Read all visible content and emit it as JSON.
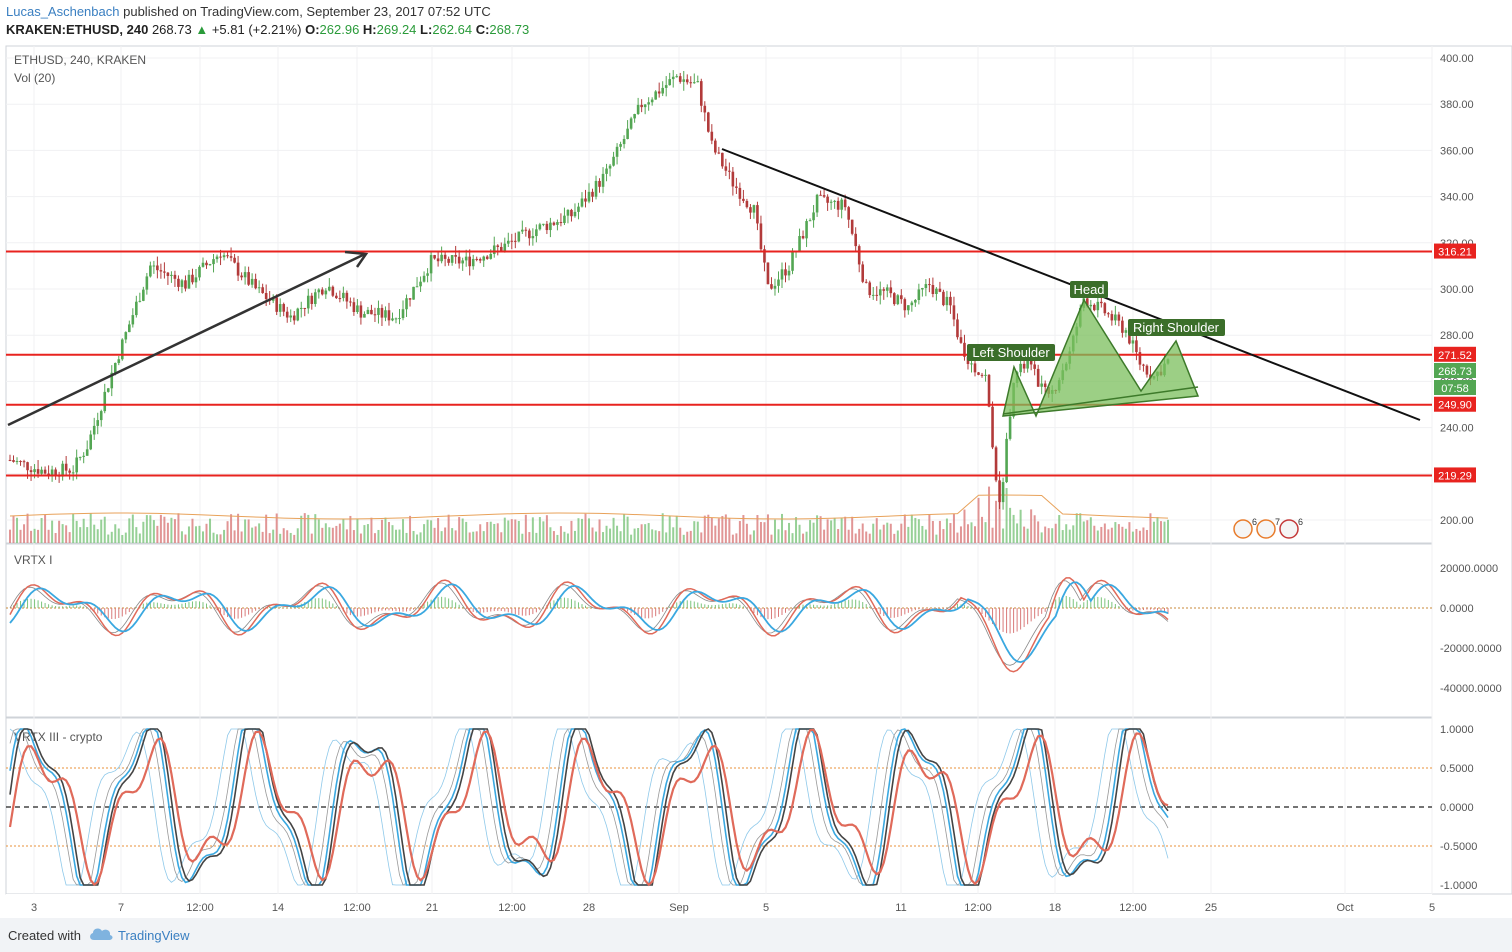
{
  "header": {
    "user": "Lucas_Aschenbach",
    "published": "published on TradingView.com, September 23, 2017 07:52 UTC",
    "symbol": "KRAKEN:ETHUSD, 240",
    "last": "268.73",
    "change": "+5.81 (+2.21%)",
    "o_label": "O:",
    "o_value": "262.96",
    "h_label": "H:",
    "h_value": "269.24",
    "l_label": "L:",
    "l_value": "262.64",
    "c_label": "C:",
    "c_value": "268.73"
  },
  "main_pane": {
    "legend_symbol": "ETHUSD, 240, KRAKEN",
    "legend_volume": "Vol (20)",
    "price_ticks": [
      "400.00",
      "380.00",
      "360.00",
      "340.00",
      "320.00",
      "300.00",
      "280.00",
      "260.00",
      "240.00",
      "220.00",
      "200.00"
    ],
    "horizontal_levels": [
      {
        "label": "316.21",
        "value": 316.21
      },
      {
        "label": "271.52",
        "value": 271.52
      },
      {
        "label": "249.90",
        "value": 249.9
      },
      {
        "label": "219.29",
        "value": 219.29
      }
    ],
    "last_price_label": "268.73",
    "countdown_label": "07:58",
    "annotations": {
      "left_shoulder": "Left Shoulder",
      "head": "Head",
      "right_shoulder": "Right Shoulder"
    },
    "event_badges": [
      "6",
      "7",
      "6"
    ]
  },
  "osc1": {
    "title": "VRTX I",
    "ticks": [
      "20000.0000",
      "0.0000",
      "-20000.0000",
      "-40000.0000"
    ]
  },
  "osc2": {
    "title": "VRTX III - crypto",
    "ticks": [
      "1.0000",
      "0.5000",
      "0.0000",
      "-0.5000",
      "-1.0000"
    ]
  },
  "time_axis": [
    "3",
    "7",
    "12:00",
    "14",
    "12:00",
    "21",
    "12:00",
    "28",
    "Sep",
    "5",
    "11",
    "12:00",
    "18",
    "12:00",
    "25",
    "Oct",
    "5"
  ],
  "footer": {
    "created_with": "Created with",
    "brand": "TradingView"
  },
  "colors": {
    "up": "#53a653",
    "down": "#b23a3a",
    "level": "#e8231f",
    "trendline": "#111111",
    "hs_fill": "#7bbf5c",
    "osc_blue": "#3aa8e0",
    "osc_red": "#e06a5a",
    "osc_grey": "#777777"
  },
  "chart_data": {
    "type": "candlestick",
    "title": "ETHUSD, 240, KRAKEN",
    "ylim": [
      190,
      405
    ],
    "x_tick_labels": [
      "3",
      "7",
      "12:00",
      "14",
      "12:00",
      "21",
      "12:00",
      "28",
      "Sep",
      "5",
      "11",
      "12:00",
      "18",
      "12:00",
      "25",
      "Oct",
      "5"
    ],
    "price_path_keypoints": [
      [
        0,
        226
      ],
      [
        10,
        221
      ],
      [
        18,
        222
      ],
      [
        22,
        232
      ],
      [
        30,
        268
      ],
      [
        40,
        310
      ],
      [
        50,
        302
      ],
      [
        60,
        316
      ],
      [
        70,
        300
      ],
      [
        80,
        288
      ],
      [
        90,
        302
      ],
      [
        100,
        290
      ],
      [
        110,
        288
      ],
      [
        120,
        312
      ],
      [
        130,
        312
      ],
      [
        140,
        318
      ],
      [
        150,
        326
      ],
      [
        160,
        332
      ],
      [
        170,
        350
      ],
      [
        180,
        380
      ],
      [
        190,
        392
      ],
      [
        196,
        388
      ],
      [
        200,
        362
      ],
      [
        206,
        346
      ],
      [
        212,
        334
      ],
      [
        216,
        300
      ],
      [
        222,
        310
      ],
      [
        230,
        338
      ],
      [
        238,
        336
      ],
      [
        244,
        300
      ],
      [
        250,
        298
      ],
      [
        256,
        292
      ],
      [
        262,
        302
      ],
      [
        268,
        292
      ],
      [
        272,
        270
      ],
      [
        278,
        262
      ],
      [
        282,
        205
      ],
      [
        286,
        262
      ],
      [
        290,
        268
      ],
      [
        296,
        252
      ],
      [
        302,
        272
      ],
      [
        306,
        296
      ],
      [
        312,
        290
      ],
      [
        318,
        282
      ],
      [
        322,
        268
      ],
      [
        326,
        262
      ],
      [
        330,
        268.73
      ]
    ],
    "volume_scale": "Vol (20)",
    "oscillators": [
      {
        "name": "VRTX I",
        "range": [
          -50000,
          28000
        ]
      },
      {
        "name": "VRTX III - crypto",
        "range": [
          -1.05,
          1.05
        ]
      }
    ]
  }
}
